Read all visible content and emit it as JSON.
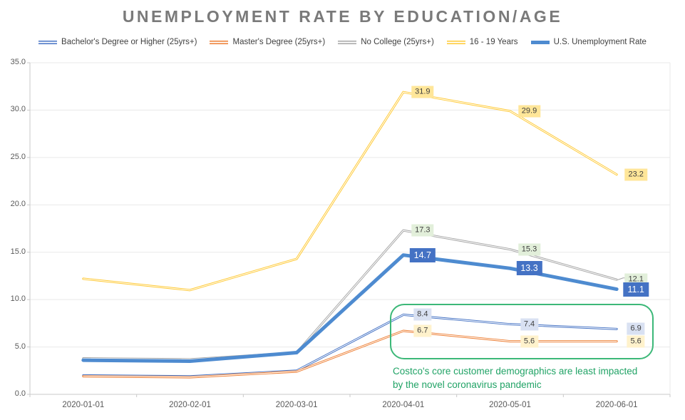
{
  "title": "UNEMPLOYMENT RATE BY EDUCATION/AGE",
  "legend": [
    {
      "label": "Bachelor's Degree or Higher (25yrs+)",
      "color": "#4472C4",
      "style": "double"
    },
    {
      "label": "Master's Degree (25yrs+)",
      "color": "#ED7D31",
      "style": "double"
    },
    {
      "label": "No College (25yrs+)",
      "color": "#A5A5A5",
      "style": "double"
    },
    {
      "label": "16 - 19 Years",
      "color": "#FFC933",
      "style": "double"
    },
    {
      "label": "U.S. Unemployment Rate",
      "color": "#4E8BD0",
      "style": "solid"
    }
  ],
  "chart_data": {
    "type": "line",
    "x": [
      "2020-01-01",
      "2020-02-01",
      "2020-03-01",
      "2020-04-01",
      "2020-05-01",
      "2020-06-01"
    ],
    "series": [
      {
        "name": "Bachelor's Degree or Higher (25yrs+)",
        "color": "#4472C4",
        "line_style": "double",
        "values": [
          2.0,
          1.9,
          2.5,
          8.4,
          7.4,
          6.9
        ],
        "data_labels": [
          "8.4",
          "7.4",
          "6.9"
        ],
        "label_bg": "#D9E1F2",
        "label_color": "#3F3F3F"
      },
      {
        "name": "Master's Degree (25yrs+)",
        "color": "#ED7D31",
        "line_style": "double",
        "values": [
          1.9,
          1.8,
          2.4,
          6.7,
          5.6,
          5.6
        ],
        "data_labels": [
          "6.7",
          "5.6",
          "5.6"
        ],
        "label_bg": "#FFF2CC",
        "label_color": "#3F3F3F"
      },
      {
        "name": "No College (25yrs+)",
        "color": "#A5A5A5",
        "line_style": "double",
        "values": [
          3.8,
          3.7,
          4.4,
          17.3,
          15.3,
          12.1
        ],
        "data_labels": [
          "17.3",
          "15.3",
          "12.1"
        ],
        "label_bg": "#E2EFDA",
        "label_color": "#3F3F3F",
        "leader_on_last": true
      },
      {
        "name": "16 - 19 Years",
        "color": "#FFC933",
        "line_style": "double",
        "values": [
          12.2,
          11.0,
          14.3,
          31.9,
          29.9,
          23.2
        ],
        "data_labels": [
          "31.9",
          "29.9",
          "23.2"
        ],
        "label_bg": "#FFE699",
        "label_color": "#3F3F3F"
      },
      {
        "name": "U.S. Unemployment Rate",
        "color": "#4E8BD0",
        "line_style": "solid-thick",
        "values": [
          3.6,
          3.5,
          4.4,
          14.7,
          13.3,
          11.1
        ],
        "data_labels": [
          "14.7",
          "13.3",
          "11.1"
        ],
        "label_bg": "#4472C4",
        "label_color": "#FFFFFF"
      }
    ],
    "data_labels_start_index": 3,
    "ylim": [
      0,
      35
    ],
    "y_ticks": [
      "35.0",
      "30.0",
      "25.0",
      "20.0",
      "15.0",
      "10.0",
      "5.0",
      "0.0"
    ],
    "grid": true,
    "legend_position": "top"
  },
  "annotation": {
    "line1": "Costco's core customer demographics are least impacted",
    "line2": "by the novel coronavirus pandemic",
    "text_color": "#21A366",
    "box_color": "#3CB878"
  }
}
